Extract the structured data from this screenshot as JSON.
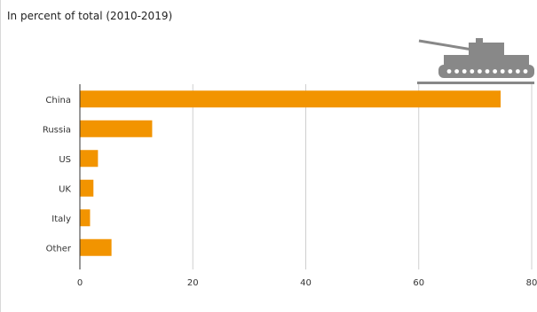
{
  "subtitle": "In percent of total (2010-2019)",
  "colors": {
    "bar": "#F29400",
    "grid": "#cfcfcf",
    "axis": "#333333",
    "tank": "#888888"
  },
  "icons": [
    "tank-icon"
  ],
  "chart_data": {
    "type": "bar",
    "orientation": "horizontal",
    "title": "",
    "subtitle": "In percent of total (2010-2019)",
    "categories": [
      "China",
      "Russia",
      "US",
      "UK",
      "Italy",
      "Other"
    ],
    "values": [
      74.5,
      12.8,
      3.2,
      2.4,
      1.8,
      5.6
    ],
    "xlim": [
      0,
      80
    ],
    "xticks": [
      0,
      20,
      40,
      60,
      80
    ],
    "grid": true,
    "legend": "none"
  }
}
